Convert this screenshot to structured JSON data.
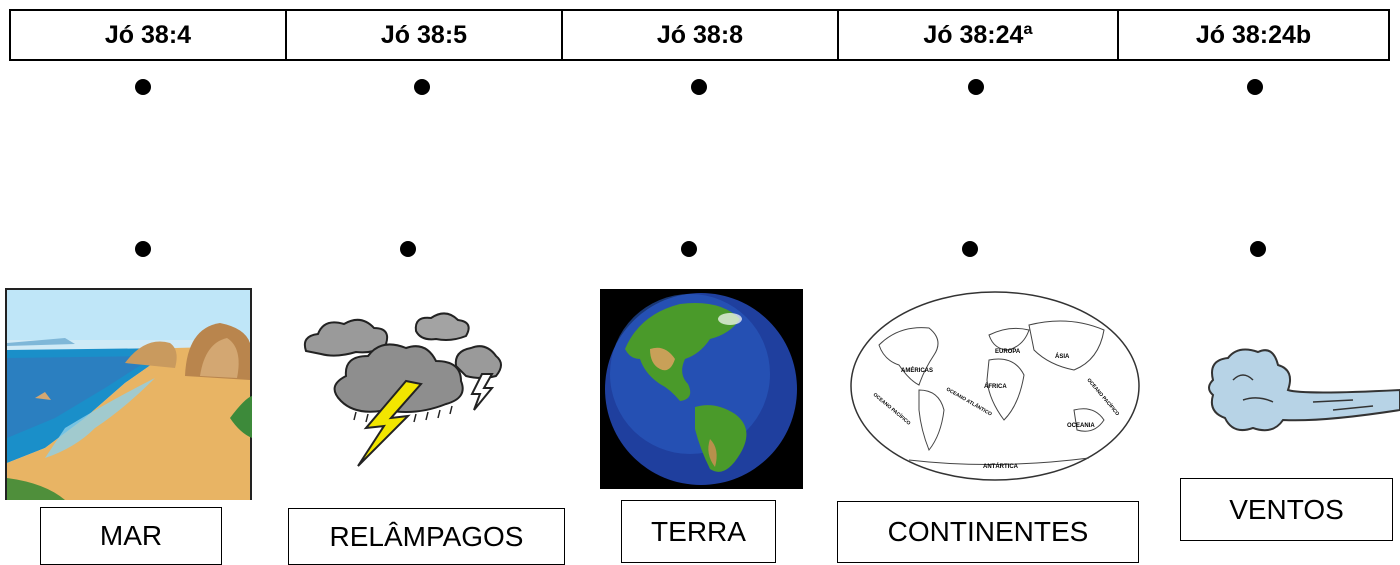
{
  "references": [
    "Jó 38:4",
    "Jó 38:5",
    "Jó 38:8",
    "Jó 38:24ª",
    "Jó 38:24b"
  ],
  "cards": [
    {
      "label": "MAR",
      "icon": "beach-sea-image"
    },
    {
      "label": "RELÂMPAGOS",
      "icon": "storm-lightning-image"
    },
    {
      "label": "TERRA",
      "icon": "earth-globe-image"
    },
    {
      "label": "CONTINENTES",
      "icon": "world-map-image"
    },
    {
      "label": "VENTOS",
      "icon": "wind-gust-image"
    }
  ],
  "map_labels": [
    "AMÉRICAS",
    "EUROPA",
    "ÁSIA",
    "ÁFRICA",
    "OCEANO ATLÂNTICO",
    "OCEANO PACÍFICO",
    "OCEANO PACÍFICO",
    "OCEANIA",
    "ANTÁRTICA"
  ],
  "colors": {
    "border": "#000000",
    "dot": "#000000",
    "sea": "#1a8fc9",
    "sand": "#e8b464",
    "earth_ocean": "#1f3f9e",
    "earth_land": "#4a9a2a",
    "cloud": "#9a9a9a",
    "lightning": "#f2e600",
    "wind": "#b7d3e6"
  }
}
